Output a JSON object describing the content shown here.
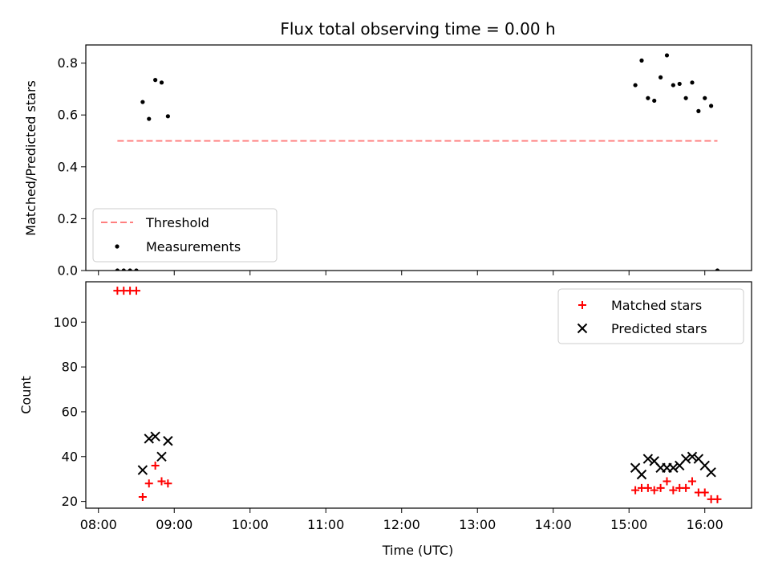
{
  "figure": {
    "title": "Flux total observing time = 0.00 h",
    "xlabel": "Time (UTC)"
  },
  "x_ticks": [
    "08:00",
    "09:00",
    "10:00",
    "11:00",
    "12:00",
    "13:00",
    "14:00",
    "15:00",
    "16:00"
  ],
  "chart_data": [
    {
      "type": "scatter",
      "ylabel": "Matched/Predicted stars",
      "xlim": [
        "07:50",
        "16:37"
      ],
      "ylim": [
        0,
        0.87
      ],
      "yticks": [
        "0.0",
        "0.2",
        "0.4",
        "0.6",
        "0.8"
      ],
      "legend": {
        "placement": "lower-left"
      },
      "series": [
        {
          "name": "Threshold",
          "style": "dashed-line",
          "color": "#ff7f7f",
          "x": [
            "08:15",
            "16:10"
          ],
          "y": [
            0.5,
            0.5
          ]
        },
        {
          "name": "Measurements",
          "style": "point",
          "color": "#000000",
          "x": [
            "08:15",
            "08:20",
            "08:25",
            "08:30",
            "08:35",
            "08:40",
            "08:45",
            "08:50",
            "08:55",
            "15:05",
            "15:10",
            "15:15",
            "15:20",
            "15:25",
            "15:30",
            "15:35",
            "15:40",
            "15:45",
            "15:50",
            "15:55",
            "16:00",
            "16:05",
            "16:10"
          ],
          "y": [
            0.0,
            0.0,
            0.0,
            0.0,
            0.65,
            0.585,
            0.735,
            0.725,
            0.595,
            0.715,
            0.81,
            0.665,
            0.655,
            0.745,
            0.83,
            0.715,
            0.72,
            0.665,
            0.725,
            0.615,
            0.665,
            0.635,
            0.0
          ]
        }
      ]
    },
    {
      "type": "scatter",
      "ylabel": "Count",
      "xlim": [
        "07:50",
        "16:37"
      ],
      "ylim": [
        17,
        118
      ],
      "yticks": [
        "20",
        "40",
        "60",
        "80",
        "100"
      ],
      "legend": {
        "placement": "top-right"
      },
      "series": [
        {
          "name": "Matched stars",
          "marker": "plus",
          "color": "#ff0000",
          "x": [
            "08:15",
            "08:20",
            "08:25",
            "08:30",
            "08:35",
            "08:40",
            "08:45",
            "08:50",
            "08:55",
            "15:05",
            "15:10",
            "15:15",
            "15:20",
            "15:25",
            "15:30",
            "15:35",
            "15:40",
            "15:45",
            "15:50",
            "15:55",
            "16:00",
            "16:05",
            "16:10"
          ],
          "y": [
            114,
            114,
            114,
            114,
            22,
            28,
            36,
            29,
            28,
            25,
            26,
            26,
            25,
            26,
            29,
            25,
            26,
            26,
            29,
            24,
            24,
            21,
            21
          ]
        },
        {
          "name": "Predicted stars",
          "marker": "x",
          "color": "#000000",
          "x": [
            "08:35",
            "08:40",
            "08:45",
            "08:50",
            "08:55",
            "15:05",
            "15:10",
            "15:15",
            "15:20",
            "15:25",
            "15:30",
            "15:35",
            "15:40",
            "15:45",
            "15:50",
            "15:55",
            "16:00",
            "16:05"
          ],
          "y": [
            34,
            48,
            49,
            40,
            47,
            35,
            32,
            39,
            38,
            35,
            35,
            35,
            36,
            39,
            40,
            39,
            36,
            33
          ]
        }
      ]
    }
  ]
}
